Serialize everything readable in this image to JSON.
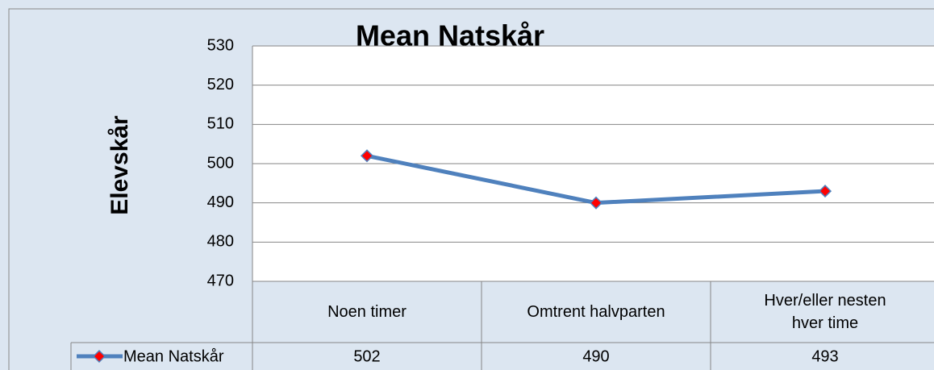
{
  "chart_data": {
    "type": "line",
    "title": "Mean Natskår",
    "y_label": "Elevskår",
    "categories": [
      "Noen timer",
      "Omtrent halvparten",
      "Hver/eller nesten hver time"
    ],
    "series": [
      {
        "name": "Mean Natskår",
        "color": "#4f81bd",
        "marker_color": "#ff0000",
        "values": [
          502,
          490,
          493
        ]
      }
    ],
    "ylim": [
      470,
      530
    ],
    "yticks": [
      470,
      480,
      490,
      500,
      510,
      520,
      530
    ],
    "grid": true,
    "data_table": true
  }
}
